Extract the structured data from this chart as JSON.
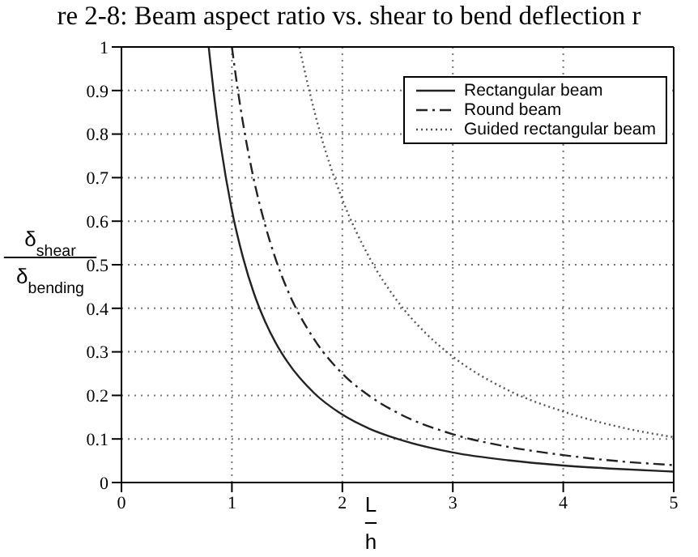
{
  "chart_data": {
    "type": "line",
    "title": "re 2-8: Beam aspect ratio vs. shear to bend deflection r",
    "xlabel": "L\nh",
    "ylabel": "δ$_{shear}$\nδ$_{bending}$",
    "xlim": [
      0,
      5
    ],
    "ylim": [
      0,
      1
    ],
    "xticks": [
      0,
      1,
      2,
      3,
      4,
      5
    ],
    "yticks": [
      0,
      0.1,
      0.2,
      0.3,
      0.4,
      0.5,
      0.6,
      0.7,
      0.8,
      0.9,
      1
    ],
    "grid": true,
    "legend": "top right",
    "marker": "none",
    "series": [
      {
        "name": "Rectangular beam",
        "color": "#222222",
        "line_style": "solid",
        "x": [
          0.79,
          0.85,
          0.9,
          1,
          1.1,
          1.2,
          1.3,
          1.4,
          1.5,
          1.75,
          2,
          2.25,
          2.5,
          3,
          3.5,
          4,
          4.5,
          5
        ],
        "values": [
          1,
          0.865,
          0.772,
          0.625,
          0.517,
          0.434,
          0.37,
          0.319,
          0.278,
          0.204,
          0.156,
          0.123,
          0.1,
          0.069,
          0.051,
          0.039,
          0.031,
          0.025
        ]
      },
      {
        "name": "Round beam",
        "color": "#222222",
        "line_style": "dashed",
        "x": [
          1,
          1.05,
          1.1,
          1.2,
          1.3,
          1.4,
          1.5,
          1.75,
          2,
          2.25,
          2.5,
          3,
          3.5,
          4,
          4.5,
          5
        ],
        "values": [
          1,
          0.907,
          0.826,
          0.694,
          0.592,
          0.51,
          0.444,
          0.327,
          0.25,
          0.198,
          0.16,
          0.111,
          0.082,
          0.063,
          0.049,
          0.04
        ]
      },
      {
        "name": "Guided rectangular beam",
        "color": "#555555",
        "line_style": "dotted",
        "x": [
          1.61,
          1.7,
          1.8,
          1.9,
          2,
          2.25,
          2.5,
          2.75,
          3,
          3.5,
          4,
          4.5,
          5
        ],
        "values": [
          1,
          0.9,
          0.802,
          0.72,
          0.65,
          0.514,
          0.416,
          0.344,
          0.289,
          0.212,
          0.163,
          0.128,
          0.104
        ]
      }
    ]
  }
}
